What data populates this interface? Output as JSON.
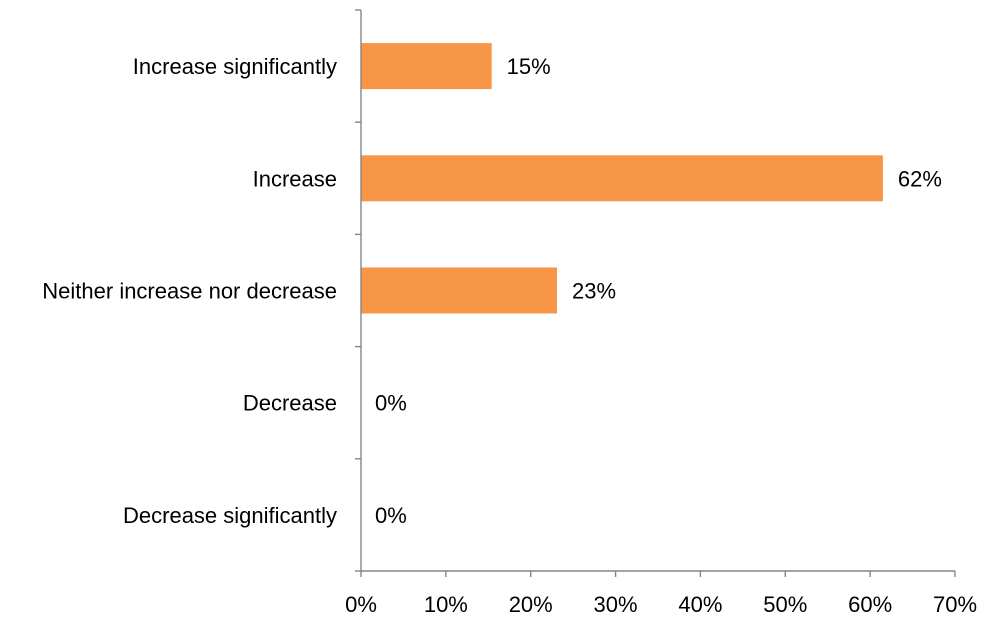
{
  "chart_data": {
    "type": "bar",
    "orientation": "horizontal",
    "categories": [
      "Increase significantly",
      "Increase",
      "Neither increase nor decrease",
      "Decrease",
      "Decrease significantly"
    ],
    "values": [
      15.4,
      61.5,
      23.1,
      0,
      0
    ],
    "value_labels": [
      "15%",
      "62%",
      "23%",
      "0%",
      "0%"
    ],
    "xlim": [
      0,
      70
    ],
    "x_ticks": [
      0,
      10,
      20,
      30,
      40,
      50,
      60,
      70
    ],
    "x_tick_labels": [
      "0%",
      "10%",
      "20%",
      "30%",
      "40%",
      "50%",
      "60%",
      "70%"
    ],
    "title": "",
    "xlabel": "",
    "ylabel": "",
    "grid": false,
    "legend": "none",
    "bar_color": "#F79646",
    "axis_color": "#868686"
  }
}
